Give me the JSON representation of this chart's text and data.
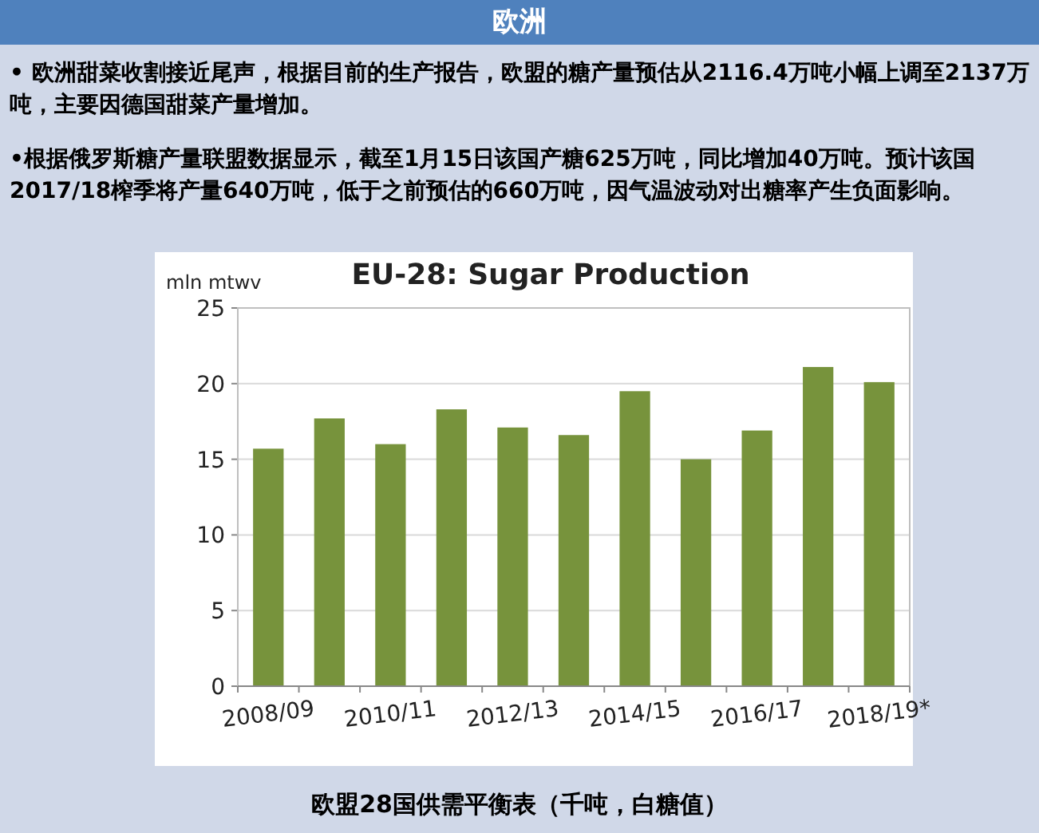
{
  "chart_data": {
    "type": "bar",
    "title": "EU-28: Sugar Production",
    "ylabel": "mln mtwv",
    "categories": [
      "2008/09",
      null,
      "2010/11",
      null,
      "2012/13",
      null,
      "2014/15",
      null,
      "2016/17",
      null,
      "2018/19*"
    ],
    "values": [
      15.7,
      17.7,
      16.0,
      18.3,
      17.1,
      16.6,
      19.5,
      15.0,
      16.9,
      21.1,
      20.1
    ],
    "color": "#77933c",
    "ylim": [
      0,
      25
    ],
    "yticks": [
      0,
      5,
      10,
      15,
      20,
      25
    ],
    "grid": "y",
    "annotations": [
      "欧洲",
      "•  欧洲甜菜收割接近尾声，根据目前的生产报告，欧盟的糖产量预估从2116.4万吨小幅上调至2137万吨，主要因德国甜菜产量增加。",
      "•根据俄罗斯糖产量联盟数据显示，截至1月15日该国产糖625万吨，同比增加40万吨。预计该国2017/18榨季将产量640万吨，低于之前预估的660万吨，因气温波动对出糖率产生负面影响。",
      "欧盟28国供需平衡表（千吨，白糖值）"
    ]
  }
}
